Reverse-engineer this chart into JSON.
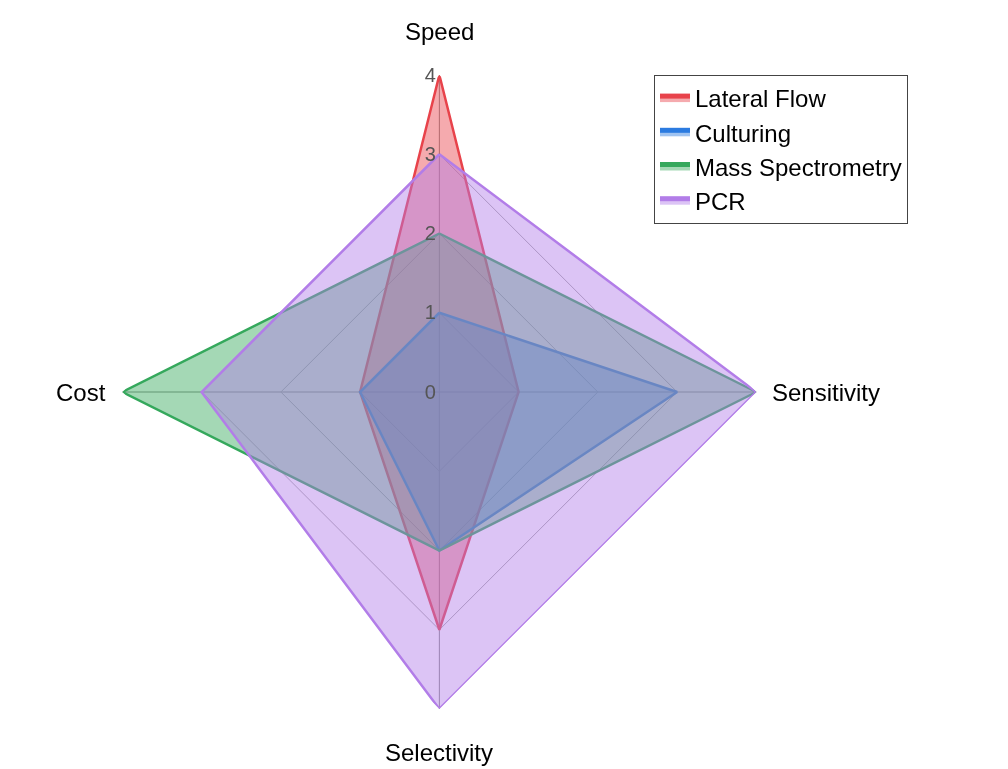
{
  "chart_data": {
    "type": "radar",
    "categories": [
      "Speed",
      "Sensitivity",
      "Selectivity",
      "Cost"
    ],
    "series": [
      {
        "name": "Lateral Flow",
        "color": "#e8434b",
        "values": [
          4,
          1,
          3,
          1
        ]
      },
      {
        "name": "Culturing",
        "color": "#2b7be0",
        "values": [
          1,
          3,
          2,
          1
        ]
      },
      {
        "name": "Mass Spectrometry",
        "color": "#35a85c",
        "values": [
          2,
          4,
          2,
          4
        ]
      },
      {
        "name": "PCR",
        "color": "#b27de8",
        "values": [
          3,
          4,
          4,
          3
        ]
      }
    ],
    "ylim": [
      0,
      4
    ],
    "yticks": [
      0,
      1,
      2,
      3,
      4
    ],
    "grid": true,
    "legend": "top right",
    "marker": "none"
  }
}
